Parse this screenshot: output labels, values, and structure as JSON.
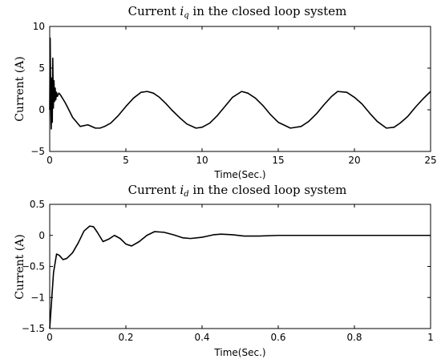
{
  "chart_data": [
    {
      "type": "line",
      "title_prefix": "Current ",
      "title_var": "i",
      "title_sub": "q",
      "title_suffix": " in the closed loop system",
      "xlabel": "Time(Sec.)",
      "ylabel": "Current (A)",
      "xlim": [
        0,
        25
      ],
      "ylim": [
        -5,
        10
      ],
      "xticks": [
        0,
        5,
        10,
        15,
        20,
        25
      ],
      "yticks": [
        -5,
        0,
        5,
        10
      ],
      "grid": false,
      "series": [
        {
          "x": [
            0,
            0.03,
            0.07,
            0.1,
            0.13,
            0.17,
            0.2,
            0.24,
            0.28,
            0.32,
            0.36,
            0.4,
            0.45,
            0.5,
            0.6,
            0.7,
            0.8,
            0.9,
            1.0,
            1.2,
            1.5,
            2.0,
            2.5,
            3.0,
            3.3,
            3.6,
            4.0,
            4.5,
            5.0,
            5.5,
            6.0,
            6.4,
            6.8,
            7.2,
            7.6,
            8.0,
            8.5,
            9.0,
            9.6,
            10.0,
            10.5,
            11.0,
            11.5,
            12.0,
            12.6,
            13.0,
            13.5,
            14.0,
            14.5,
            15.0,
            15.8,
            16.5,
            17.0,
            17.5,
            18.0,
            18.5,
            18.9,
            19.5,
            20.0,
            20.5,
            21.0,
            21.5,
            22.1,
            22.6,
            23.0,
            23.5,
            24.0,
            24.5,
            25.0
          ],
          "y": [
            0,
            8.6,
            0.5,
            -2.3,
            3.8,
            -1.5,
            6.2,
            0.2,
            3.5,
            1.0,
            2.6,
            1.2,
            2.1,
            1.6,
            2.0,
            1.8,
            1.5,
            1.2,
            0.9,
            0.2,
            -0.9,
            -2.0,
            -1.8,
            -2.2,
            -2.2,
            -2.0,
            -1.6,
            -0.7,
            0.4,
            1.4,
            2.1,
            2.2,
            2.0,
            1.5,
            0.8,
            0.0,
            -0.9,
            -1.7,
            -2.2,
            -2.1,
            -1.6,
            -0.7,
            0.4,
            1.5,
            2.2,
            2.0,
            1.4,
            0.5,
            -0.6,
            -1.5,
            -2.2,
            -2.0,
            -1.4,
            -0.5,
            0.6,
            1.6,
            2.2,
            2.1,
            1.5,
            0.7,
            -0.4,
            -1.4,
            -2.2,
            -2.1,
            -1.6,
            -0.8,
            0.3,
            1.3,
            2.2
          ]
        }
      ]
    },
    {
      "type": "line",
      "title_prefix": "Current ",
      "title_var": "i",
      "title_sub": "d",
      "title_suffix": " in the closed loop system",
      "xlabel": "Time(Sec.)",
      "ylabel": "Current (A)",
      "xlim": [
        0,
        1
      ],
      "ylim": [
        -1.5,
        0.5
      ],
      "xticks": [
        0,
        0.2,
        0.4,
        0.6,
        0.8,
        1
      ],
      "yticks": [
        -1.5,
        -1,
        -0.5,
        0,
        0.5
      ],
      "grid": false,
      "series": [
        {
          "x": [
            0,
            0.01,
            0.018,
            0.025,
            0.035,
            0.045,
            0.06,
            0.075,
            0.09,
            0.105,
            0.115,
            0.125,
            0.14,
            0.155,
            0.17,
            0.185,
            0.2,
            0.215,
            0.235,
            0.255,
            0.275,
            0.3,
            0.325,
            0.35,
            0.37,
            0.4,
            0.43,
            0.45,
            0.48,
            0.51,
            0.55,
            0.6,
            0.7,
            0.8,
            0.9,
            1.0
          ],
          "y": [
            -1.5,
            -0.6,
            -0.3,
            -0.32,
            -0.39,
            -0.37,
            -0.28,
            -0.12,
            0.07,
            0.15,
            0.14,
            0.05,
            -0.1,
            -0.06,
            0.0,
            -0.05,
            -0.14,
            -0.17,
            -0.1,
            0.0,
            0.06,
            0.05,
            0.01,
            -0.04,
            -0.05,
            -0.03,
            0.01,
            0.02,
            0.01,
            -0.01,
            -0.01,
            0.0,
            0.0,
            0.0,
            0.0,
            0.0
          ]
        }
      ]
    }
  ]
}
